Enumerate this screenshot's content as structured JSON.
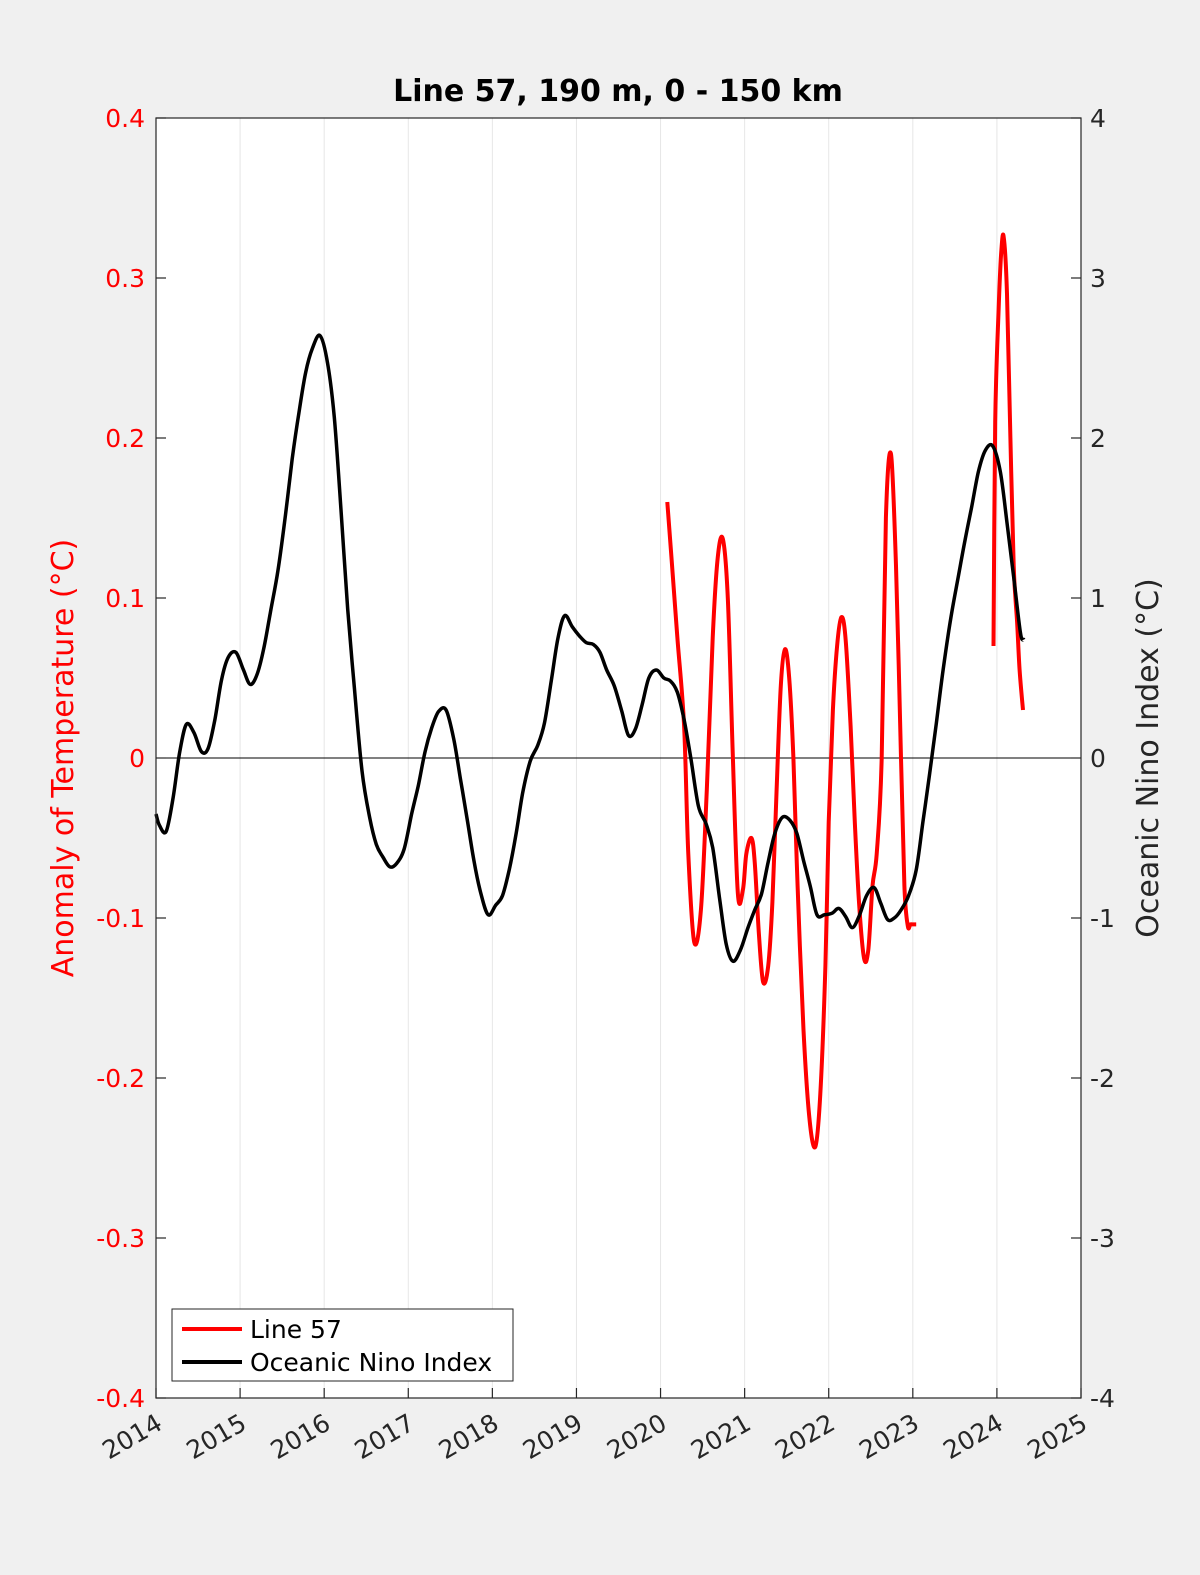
{
  "chart_data": {
    "type": "line",
    "title": "Line 57, 190 m, 0 - 150 km",
    "xlim": [
      2014,
      2025
    ],
    "x_ticks": [
      "2014",
      "2015",
      "2016",
      "2017",
      "2018",
      "2019",
      "2020",
      "2021",
      "2022",
      "2023",
      "2024",
      "2025"
    ],
    "y_left": {
      "label": "Anomaly of Temperature (°C)",
      "lim": [
        -0.4,
        0.4
      ],
      "ticks": [
        "-0.4",
        "-0.3",
        "-0.2",
        "-0.1",
        "0",
        "0.1",
        "0.2",
        "0.3",
        "0.4"
      ],
      "color": "#ff0000"
    },
    "y_right": {
      "label": "Oceanic Nino Index (°C)",
      "lim": [
        -4,
        4
      ],
      "ticks": [
        "-4",
        "-3",
        "-2",
        "-1",
        "0",
        "1",
        "2",
        "3",
        "4"
      ],
      "color": "#262626"
    },
    "grid": "vertical",
    "legend_position": "bottom-left",
    "series": [
      {
        "name": "Line 57",
        "axis": "left",
        "color": "#ff0000",
        "x": [
          2020.08,
          2020.13,
          2020.2,
          2020.28,
          2020.33,
          2020.4,
          2020.48,
          2020.55,
          2020.62,
          2020.68,
          2020.74,
          2020.8,
          2020.86,
          2020.92,
          2020.98,
          2021.02,
          2021.08,
          2021.12,
          2021.17,
          2021.22,
          2021.28,
          2021.33,
          2021.38,
          2021.43,
          2021.48,
          2021.53,
          2021.58,
          2021.63,
          2021.7,
          2021.77,
          2021.84,
          2021.9,
          2021.96,
          2022.0,
          2022.05,
          2022.1,
          2022.15,
          2022.2,
          2022.26,
          2022.31,
          2022.36,
          2022.42,
          2022.47,
          2022.52,
          2022.57,
          2022.63,
          2022.68,
          2022.74,
          2022.8,
          2022.86,
          2022.9,
          2022.94,
          2022.97,
          2023.0,
          2023.03,
          2023.04
        ],
        "y": [
          0.16,
          0.125,
          0.075,
          0.02,
          -0.06,
          -0.115,
          -0.095,
          -0.02,
          0.075,
          0.125,
          0.137,
          0.1,
          0.0,
          -0.085,
          -0.082,
          -0.06,
          -0.05,
          -0.065,
          -0.11,
          -0.14,
          -0.13,
          -0.09,
          -0.02,
          0.045,
          0.068,
          0.05,
          0.0,
          -0.08,
          -0.17,
          -0.225,
          -0.243,
          -0.21,
          -0.13,
          -0.04,
          0.03,
          0.07,
          0.088,
          0.075,
          0.02,
          -0.04,
          -0.09,
          -0.125,
          -0.12,
          -0.08,
          -0.06,
          0.0,
          0.15,
          0.19,
          0.12,
          0.0,
          -0.08,
          -0.105,
          -0.104,
          -0.104,
          -0.104,
          -0.104
        ]
      },
      {
        "name": "Line 57",
        "axis": "left",
        "color": "#ff0000",
        "x": [
          2023.96,
          2023.98,
          2024.02,
          2024.05,
          2024.08,
          2024.12,
          2024.16,
          2024.2,
          2024.24,
          2024.27,
          2024.31
        ],
        "y": [
          0.07,
          0.21,
          0.28,
          0.315,
          0.326,
          0.29,
          0.2,
          0.12,
          0.085,
          0.055,
          0.03
        ]
      },
      {
        "name": "Oceanic Nino Index",
        "axis": "right",
        "color": "#000000",
        "x": [
          2014.0,
          2014.04,
          2014.12,
          2014.2,
          2014.28,
          2014.36,
          2014.45,
          2014.54,
          2014.62,
          2014.7,
          2014.78,
          2014.86,
          2014.95,
          2015.04,
          2015.12,
          2015.2,
          2015.28,
          2015.36,
          2015.45,
          2015.54,
          2015.62,
          2015.7,
          2015.78,
          2015.86,
          2015.95,
          2016.04,
          2016.12,
          2016.2,
          2016.28,
          2016.36,
          2016.45,
          2016.54,
          2016.62,
          2016.7,
          2016.78,
          2016.86,
          2016.95,
          2017.04,
          2017.12,
          2017.2,
          2017.28,
          2017.36,
          2017.45,
          2017.54,
          2017.62,
          2017.7,
          2017.78,
          2017.86,
          2017.95,
          2018.04,
          2018.12,
          2018.2,
          2018.28,
          2018.36,
          2018.45,
          2018.54,
          2018.62,
          2018.7,
          2018.78,
          2018.86,
          2018.95,
          2019.04,
          2019.12,
          2019.2,
          2019.28,
          2019.36,
          2019.45,
          2019.54,
          2019.62,
          2019.7,
          2019.78,
          2019.86,
          2019.95,
          2020.04,
          2020.12,
          2020.2,
          2020.28,
          2020.36,
          2020.45,
          2020.54,
          2020.62,
          2020.7,
          2020.78,
          2020.86,
          2020.95,
          2021.04,
          2021.12,
          2021.2,
          2021.28,
          2021.36,
          2021.45,
          2021.54,
          2021.62,
          2021.7,
          2021.78,
          2021.86,
          2021.95,
          2022.04,
          2022.12,
          2022.2,
          2022.28,
          2022.36,
          2022.45,
          2022.54,
          2022.62,
          2022.7,
          2022.78,
          2022.86,
          2022.95,
          2023.04,
          2023.12,
          2023.2,
          2023.28,
          2023.36,
          2023.45,
          2023.54,
          2023.62,
          2023.7,
          2023.78,
          2023.86,
          2023.95,
          2024.04,
          2024.12,
          2024.2,
          2024.28,
          2024.32
        ],
        "y": [
          -0.35,
          -0.42,
          -0.46,
          -0.26,
          0.03,
          0.21,
          0.16,
          0.04,
          0.06,
          0.24,
          0.49,
          0.63,
          0.66,
          0.55,
          0.46,
          0.52,
          0.68,
          0.91,
          1.17,
          1.52,
          1.87,
          2.16,
          2.41,
          2.56,
          2.64,
          2.47,
          2.13,
          1.55,
          0.93,
          0.43,
          -0.08,
          -0.37,
          -0.54,
          -0.62,
          -0.68,
          -0.66,
          -0.57,
          -0.35,
          -0.17,
          0.04,
          0.19,
          0.29,
          0.3,
          0.12,
          -0.13,
          -0.38,
          -0.64,
          -0.84,
          -0.98,
          -0.92,
          -0.86,
          -0.7,
          -0.48,
          -0.22,
          -0.02,
          0.08,
          0.22,
          0.48,
          0.75,
          0.89,
          0.82,
          0.76,
          0.72,
          0.71,
          0.66,
          0.55,
          0.45,
          0.29,
          0.14,
          0.18,
          0.33,
          0.5,
          0.55,
          0.5,
          0.48,
          0.41,
          0.24,
          0.0,
          -0.3,
          -0.41,
          -0.56,
          -0.87,
          -1.16,
          -1.27,
          -1.2,
          -1.06,
          -0.95,
          -0.85,
          -0.65,
          -0.47,
          -0.37,
          -0.39,
          -0.47,
          -0.64,
          -0.8,
          -0.98,
          -0.98,
          -0.97,
          -0.94,
          -0.99,
          -1.06,
          -0.99,
          -0.86,
          -0.81,
          -0.91,
          -1.01,
          -1.0,
          -0.95,
          -0.86,
          -0.7,
          -0.4,
          -0.1,
          0.22,
          0.55,
          0.87,
          1.13,
          1.36,
          1.57,
          1.79,
          1.92,
          1.95,
          1.79,
          1.47,
          1.13,
          0.78,
          0.74
        ]
      }
    ]
  }
}
